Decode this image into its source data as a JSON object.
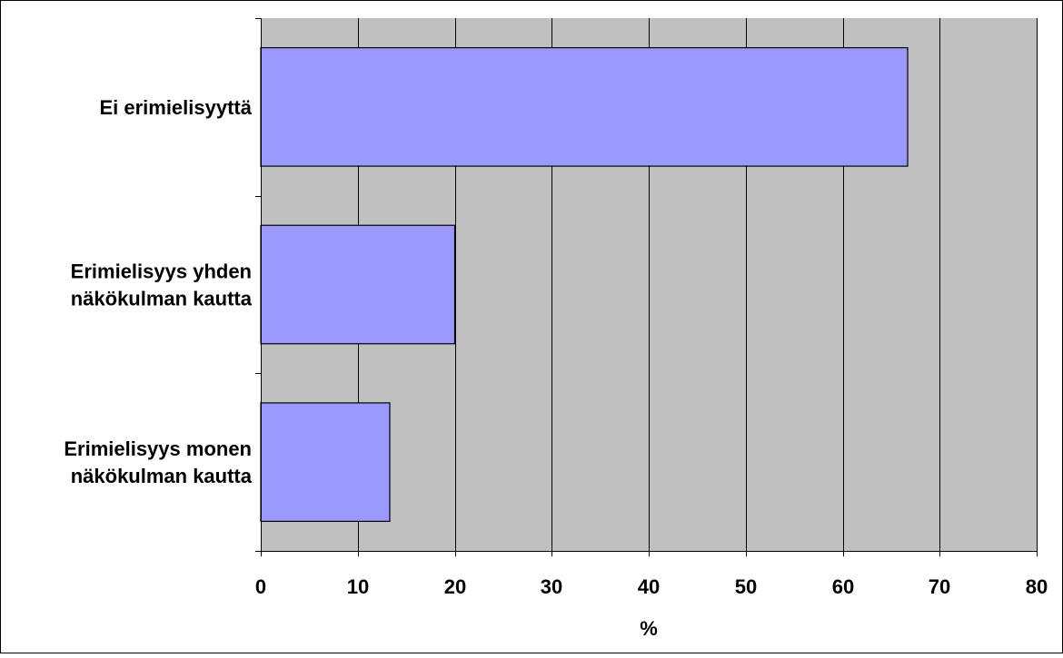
{
  "colors": {
    "plot_background": "#c0c0c0",
    "bar_fill": "#9999ff",
    "bar_stroke": "#000000",
    "grid": "#000000",
    "frame": "#000000"
  },
  "chart_data": {
    "type": "bar",
    "orientation": "horizontal",
    "categories": [
      [
        "Ei erimielisyyttä"
      ],
      [
        "Erimielisyys yhden",
        "näkökulman kautta"
      ],
      [
        "Erimielisyys monen",
        "näkökulman kautta"
      ]
    ],
    "values": [
      66.7,
      20.0,
      13.3
    ],
    "xlabel": "%",
    "ylabel": "",
    "xlim": [
      0,
      80
    ],
    "xticks": [
      0,
      10,
      20,
      30,
      40,
      50,
      60,
      70,
      80
    ],
    "grid": true,
    "legend": "none"
  }
}
